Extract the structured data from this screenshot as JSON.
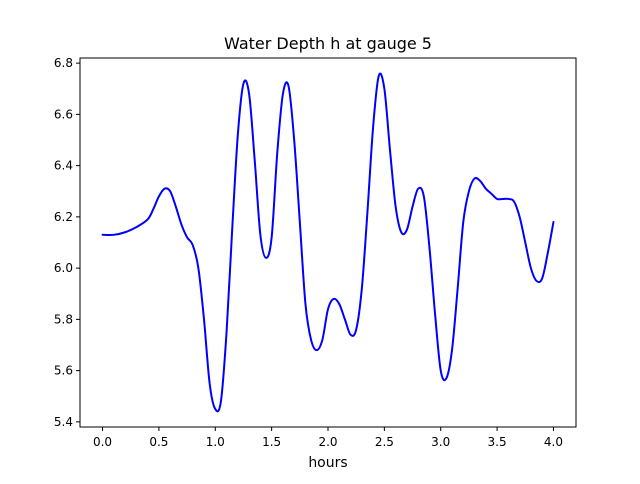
{
  "chart_data": {
    "type": "line",
    "title": "Water Depth h at gauge 5",
    "xlabel": "hours",
    "ylabel": "",
    "xlim": [
      -0.2,
      4.2
    ],
    "ylim": [
      5.38,
      6.82
    ],
    "x_ticks": [
      0.0,
      0.5,
      1.0,
      1.5,
      2.0,
      2.5,
      3.0,
      3.5,
      4.0
    ],
    "x_tick_labels": [
      "0.0",
      "0.5",
      "1.0",
      "1.5",
      "2.0",
      "2.5",
      "3.0",
      "3.5",
      "4.0"
    ],
    "y_ticks": [
      5.4,
      5.6,
      5.8,
      6.0,
      6.2,
      6.4,
      6.6,
      6.8
    ],
    "y_tick_labels": [
      "5.4",
      "5.6",
      "5.8",
      "6.0",
      "6.2",
      "6.4",
      "6.6",
      "6.8"
    ],
    "grid": false,
    "legend": "none",
    "line_color": "#0000ff",
    "series": [
      {
        "x": [
          0.0,
          0.1,
          0.2,
          0.3,
          0.4,
          0.45,
          0.5,
          0.55,
          0.6,
          0.65,
          0.7,
          0.75,
          0.8,
          0.85,
          0.9,
          0.95,
          1.0,
          1.05,
          1.1,
          1.15,
          1.2,
          1.25,
          1.3,
          1.35,
          1.4,
          1.45,
          1.5,
          1.55,
          1.6,
          1.65,
          1.7,
          1.75,
          1.8,
          1.85,
          1.9,
          1.95,
          2.0,
          2.05,
          2.1,
          2.15,
          2.2,
          2.25,
          2.3,
          2.35,
          2.4,
          2.45,
          2.5,
          2.55,
          2.6,
          2.65,
          2.7,
          2.75,
          2.8,
          2.85,
          2.9,
          2.95,
          3.0,
          3.05,
          3.1,
          3.15,
          3.2,
          3.25,
          3.3,
          3.35,
          3.4,
          3.45,
          3.5,
          3.55,
          3.6,
          3.65,
          3.7,
          3.75,
          3.8,
          3.85,
          3.9,
          3.95,
          4.0
        ],
        "values": [
          6.13,
          6.13,
          6.14,
          6.16,
          6.19,
          6.23,
          6.28,
          6.31,
          6.3,
          6.24,
          6.17,
          6.12,
          6.09,
          6.0,
          5.8,
          5.55,
          5.45,
          5.48,
          5.75,
          6.15,
          6.52,
          6.72,
          6.68,
          6.42,
          6.13,
          6.04,
          6.12,
          6.45,
          6.68,
          6.71,
          6.5,
          6.18,
          5.86,
          5.72,
          5.68,
          5.72,
          5.84,
          5.88,
          5.86,
          5.8,
          5.74,
          5.76,
          5.92,
          6.22,
          6.55,
          6.75,
          6.7,
          6.46,
          6.24,
          6.14,
          6.15,
          6.24,
          6.31,
          6.28,
          6.08,
          5.82,
          5.6,
          5.57,
          5.68,
          5.92,
          6.18,
          6.3,
          6.35,
          6.34,
          6.31,
          6.29,
          6.27,
          6.27,
          6.27,
          6.26,
          6.2,
          6.1,
          6.0,
          5.95,
          5.96,
          6.06,
          6.18
        ]
      }
    ]
  }
}
